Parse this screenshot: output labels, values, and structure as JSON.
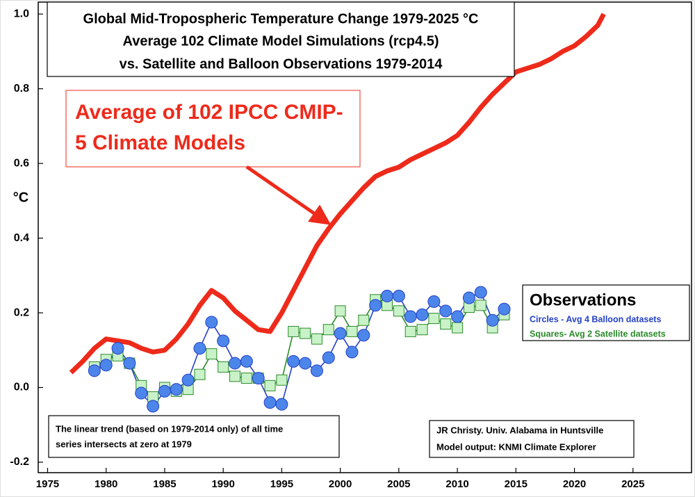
{
  "chart_data": {
    "type": "line",
    "title": [
      "Global Mid-Tropospheric Temperature Change 1979-2025 °C",
      "Average 102 Climate Model Simulations (rcp4.5)",
      "vs. Satellite and Balloon Observations 1979-2014"
    ],
    "y_label": "°C",
    "annotation": "Average of 102 IPCC CMIP-5 Climate Models",
    "legend_title": "Observations",
    "notes": [
      "The linear trend (based on 1979-2014 only) of all time",
      "series intersects at zero at 1979"
    ],
    "credit": [
      "JR Christy. Univ. Alabama in Huntsville",
      "Model output: KNMI Climate Explorer"
    ],
    "xlim": [
      1974.2,
      2030
    ],
    "ylim": [
      -0.228,
      1.032
    ],
    "xticks": [
      1975,
      1980,
      1985,
      1990,
      1995,
      2000,
      2005,
      2010,
      2015,
      2020,
      2025
    ],
    "yticks": [
      -0.2,
      {
        "value": 0,
        "label": "0.0"
      },
      0.2,
      0.4,
      0.6,
      0.8,
      {
        "value": 1,
        "label": "1.0"
      }
    ],
    "series": [
      {
        "color": "#ee2a1b",
        "marker": "none",
        "x": [
          1977,
          1978,
          1979,
          1980,
          1981,
          1982,
          1983,
          1984,
          1985,
          1986,
          1987,
          1988,
          1989,
          1990,
          1991,
          1992,
          1993,
          1994,
          1995,
          1996,
          1997,
          1998,
          1999,
          2000,
          2001,
          2002,
          2003,
          2004,
          2005,
          2006,
          2007,
          2008,
          2009,
          2010,
          2011,
          2012,
          2013,
          2014,
          2015,
          2016,
          2017,
          2018,
          2019,
          2020,
          2021,
          2022,
          2022.5
        ],
        "values": [
          0.04,
          0.07,
          0.105,
          0.13,
          0.125,
          0.12,
          0.105,
          0.095,
          0.1,
          0.13,
          0.17,
          0.22,
          0.26,
          0.24,
          0.205,
          0.18,
          0.155,
          0.15,
          0.2,
          0.26,
          0.32,
          0.38,
          0.425,
          0.465,
          0.5,
          0.535,
          0.565,
          0.58,
          0.59,
          0.61,
          0.625,
          0.64,
          0.655,
          0.675,
          0.71,
          0.75,
          0.785,
          0.815,
          0.845,
          0.855,
          0.865,
          0.88,
          0.9,
          0.915,
          0.94,
          0.97,
          1.0
        ]
      },
      {
        "name": "Circles - Avg 4 Balloon datasets",
        "color": "#2340c8",
        "marker": "circle",
        "x": [
          1979,
          1980,
          1981,
          1982,
          1983,
          1984,
          1985,
          1986,
          1987,
          1988,
          1989,
          1990,
          1991,
          1992,
          1993,
          1994,
          1995,
          1996,
          1997,
          1998,
          1999,
          2000,
          2001,
          2002,
          2003,
          2004,
          2005,
          2006,
          2007,
          2008,
          2009,
          2010,
          2011,
          2012,
          2013,
          2014
        ],
        "values": [
          0.045,
          0.06,
          0.105,
          0.065,
          -0.015,
          -0.05,
          -0.01,
          -0.005,
          0.02,
          0.105,
          0.175,
          0.125,
          0.065,
          0.07,
          0.025,
          -0.04,
          -0.045,
          0.07,
          0.065,
          0.045,
          0.08,
          0.145,
          0.095,
          0.14,
          0.22,
          0.245,
          0.245,
          0.19,
          0.195,
          0.23,
          0.205,
          0.19,
          0.24,
          0.255,
          0.18,
          0.21
        ]
      },
      {
        "name": "Squares- Avg 2 Satellite datasets",
        "color": "#2a8a2a",
        "marker": "square",
        "x": [
          1979,
          1980,
          1981,
          1982,
          1983,
          1984,
          1985,
          1986,
          1987,
          1988,
          1989,
          1990,
          1991,
          1992,
          1993,
          1994,
          1995,
          1996,
          1997,
          1998,
          1999,
          2000,
          2001,
          2002,
          2003,
          2004,
          2005,
          2006,
          2007,
          2008,
          2009,
          2010,
          2011,
          2012,
          2013,
          2014
        ],
        "values": [
          0.055,
          0.075,
          0.085,
          0.065,
          0.005,
          -0.025,
          0.0,
          -0.01,
          -0.005,
          0.035,
          0.09,
          0.055,
          0.03,
          0.025,
          0.025,
          0.005,
          0.02,
          0.15,
          0.145,
          0.13,
          0.155,
          0.205,
          0.15,
          0.18,
          0.235,
          0.22,
          0.205,
          0.15,
          0.155,
          0.185,
          0.17,
          0.16,
          0.215,
          0.22,
          0.16,
          0.195
        ]
      }
    ]
  }
}
